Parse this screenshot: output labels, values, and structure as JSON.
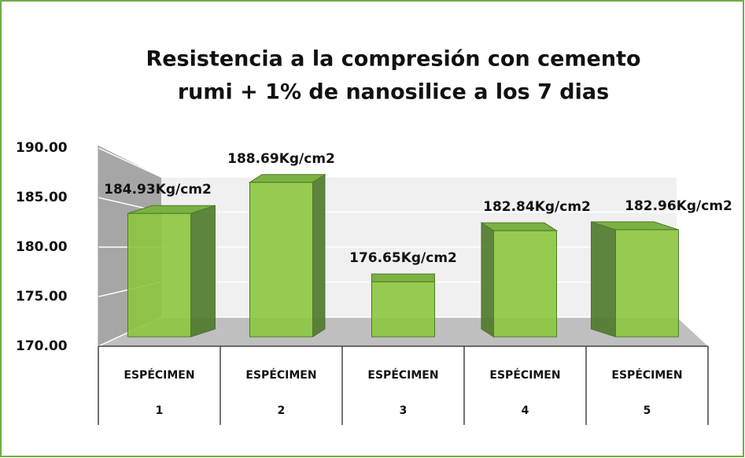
{
  "chart_data": {
    "type": "bar3d",
    "title": [
      "Resistencia a la compresión con cemento",
      "rumi + 1% de nanosilice a los 7 dias"
    ],
    "categories": [
      [
        "ESPÉCIMEN",
        "1"
      ],
      [
        "ESPÉCIMEN",
        "2"
      ],
      [
        "ESPÉCIMEN",
        "3"
      ],
      [
        "ESPÉCIMEN",
        "4"
      ],
      [
        "ESPÉCIMEN",
        "5"
      ]
    ],
    "values": [
      184.93,
      188.69,
      176.65,
      182.84,
      182.96
    ],
    "value_labels": [
      "184.93Kg/cm2",
      "188.69Kg/cm2",
      "176.65Kg/cm2",
      "182.84Kg/cm2",
      "182.96Kg/cm2"
    ],
    "color": "#8cc63f",
    "ylim": [
      170,
      190
    ],
    "yticks": [
      {
        "value": 170,
        "label": "170.00"
      },
      {
        "value": 175,
        "label": "175.00"
      },
      {
        "value": 180,
        "label": "180.00"
      },
      {
        "value": 185,
        "label": "185.00"
      },
      {
        "value": 190,
        "label": "190.00"
      }
    ],
    "grid": true
  }
}
